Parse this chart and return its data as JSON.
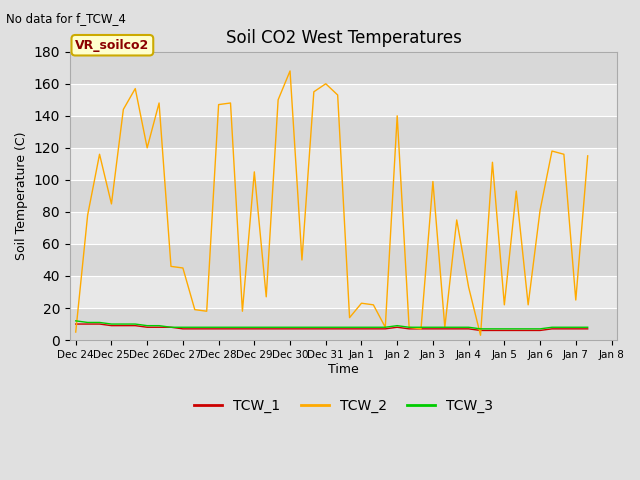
{
  "title": "Soil CO2 West Temperatures",
  "no_data_text": "No data for f_TCW_4",
  "ylabel": "Soil Temperature (C)",
  "xlabel": "Time",
  "ylim": [
    0,
    180
  ],
  "yticks": [
    0,
    20,
    40,
    60,
    80,
    100,
    120,
    140,
    160,
    180
  ],
  "x_tick_labels": [
    "Dec 24",
    "Dec 25",
    "Dec 26",
    "Dec 27",
    "Dec 28",
    "Dec 29",
    "Dec 30",
    "Dec 31",
    "Jan 1",
    "Jan 2",
    "Jan 3",
    "Jan 4",
    "Jan 5",
    "Jan 6",
    "Jan 7",
    "Jan 8"
  ],
  "fig_bg_color": "#e0e0e0",
  "plot_bg_color": "#e8e8e8",
  "band_colors": [
    "#d8d8d8",
    "#e8e8e8"
  ],
  "grid_color": "#ffffff",
  "legend_label": "VR_soilco2",
  "legend_box_color": "#ffffcc",
  "legend_box_edge": "#ccaa00",
  "series_colors": {
    "TCW_1": "#cc0000",
    "TCW_2": "#ffaa00",
    "TCW_3": "#00cc00"
  },
  "TCW_2": [
    5,
    78,
    116,
    85,
    144,
    157,
    120,
    148,
    46,
    45,
    19,
    18,
    147,
    148,
    18,
    105,
    27,
    150,
    168,
    50,
    155,
    160,
    153,
    14,
    23,
    22,
    8,
    140,
    8,
    7,
    99,
    8,
    75,
    33,
    3,
    111,
    22,
    93,
    22,
    81,
    118,
    116,
    25,
    115
  ],
  "TCW_1": [
    10,
    10,
    10,
    9,
    9,
    9,
    8,
    8,
    8,
    7,
    7,
    7,
    7,
    7,
    7,
    7,
    7,
    7,
    7,
    7,
    7,
    7,
    7,
    7,
    7,
    7,
    7,
    8,
    7,
    7,
    7,
    7,
    7,
    7,
    6,
    6,
    6,
    6,
    6,
    6,
    7,
    7,
    7,
    7
  ],
  "TCW_3": [
    12,
    11,
    11,
    10,
    10,
    10,
    9,
    9,
    8,
    8,
    8,
    8,
    8,
    8,
    8,
    8,
    8,
    8,
    8,
    8,
    8,
    8,
    8,
    8,
    8,
    8,
    8,
    9,
    8,
    8,
    8,
    8,
    8,
    8,
    7,
    7,
    7,
    7,
    7,
    7,
    8,
    8,
    8,
    8
  ],
  "n_points": 44,
  "x_tick_positions": [
    0,
    3,
    6,
    9,
    12,
    15,
    18,
    21,
    24,
    27,
    30,
    33,
    36,
    39,
    42,
    45
  ]
}
